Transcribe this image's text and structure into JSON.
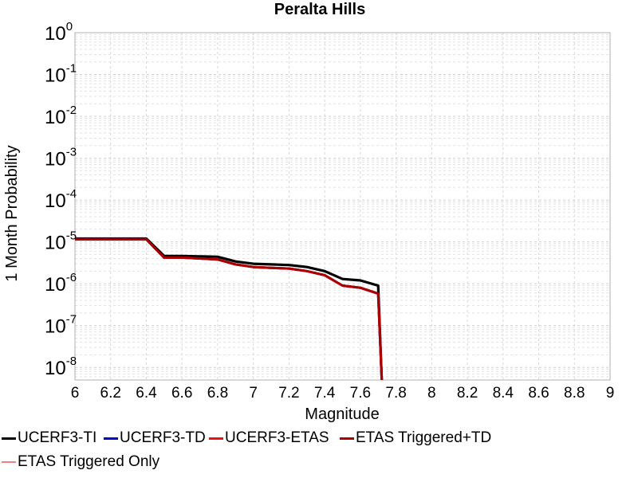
{
  "chart_data": {
    "type": "line",
    "title": "Peralta Hills",
    "xlabel": "Magnitude",
    "ylabel": "1 Month Probability",
    "xlim": [
      6,
      9
    ],
    "ylim": [
      5e-09,
      1
    ],
    "yscale": "log",
    "x_ticks": [
      "6",
      "6.2",
      "6.4",
      "6.6",
      "6.8",
      "7",
      "7.2",
      "7.4",
      "7.6",
      "7.8",
      "8",
      "8.2",
      "8.4",
      "8.6",
      "8.8",
      "9"
    ],
    "y_tick_base": "10",
    "y_ticks": [
      {
        "value": 1e-08,
        "exponent": "-8"
      },
      {
        "value": 1e-07,
        "exponent": "-7"
      },
      {
        "value": 1e-06,
        "exponent": "-6"
      },
      {
        "value": 1e-05,
        "exponent": "-5"
      },
      {
        "value": 0.0001,
        "exponent": "-4"
      },
      {
        "value": 0.001,
        "exponent": "-3"
      },
      {
        "value": 0.01,
        "exponent": "-2"
      },
      {
        "value": 0.1,
        "exponent": "-1"
      },
      {
        "value": 1,
        "exponent": "0"
      }
    ],
    "grid": true,
    "legend_position": "bottom",
    "series": [
      {
        "name": "UCERF3-TI",
        "color": "#000000",
        "x": [
          6.0,
          6.1,
          6.2,
          6.3,
          6.4,
          6.5,
          6.6,
          6.7,
          6.8,
          6.9,
          7.0,
          7.1,
          7.2,
          7.3,
          7.4,
          7.5,
          7.6,
          7.7,
          7.72
        ],
        "y": [
          1.2e-05,
          1.2e-05,
          1.2e-05,
          1.2e-05,
          1.2e-05,
          4.6e-06,
          4.6e-06,
          4.5e-06,
          4.4e-06,
          3.4e-06,
          3e-06,
          2.9e-06,
          2.8e-06,
          2.5e-06,
          2e-06,
          1.3e-06,
          1.2e-06,
          9e-07,
          5e-09
        ]
      },
      {
        "name": "UCERF3-TD",
        "color": "#0000cc",
        "x": [
          6.0,
          6.1,
          6.2,
          6.3,
          6.4,
          6.5,
          6.6,
          6.7,
          6.8,
          6.9,
          7.0,
          7.1,
          7.2,
          7.3,
          7.4,
          7.5,
          7.6,
          7.7,
          7.72
        ],
        "y": [
          1.15e-05,
          1.15e-05,
          1.15e-05,
          1.15e-05,
          1.15e-05,
          4.2e-06,
          4.2e-06,
          4e-06,
          3.8e-06,
          2.9e-06,
          2.5e-06,
          2.4e-06,
          2.3e-06,
          2e-06,
          1.6e-06,
          9e-07,
          8e-07,
          5.8e-07,
          5e-09
        ]
      },
      {
        "name": "UCERF3-ETAS",
        "color": "#ee1111",
        "x": [
          6.0,
          6.1,
          6.2,
          6.3,
          6.4,
          6.5,
          6.6,
          6.7,
          6.8,
          6.9,
          7.0,
          7.1,
          7.2,
          7.3,
          7.4,
          7.5,
          7.6,
          7.7,
          7.72
        ],
        "y": [
          1.15e-05,
          1.15e-05,
          1.15e-05,
          1.15e-05,
          1.15e-05,
          4.2e-06,
          4.2e-06,
          4e-06,
          3.8e-06,
          2.9e-06,
          2.5e-06,
          2.4e-06,
          2.3e-06,
          2e-06,
          1.6e-06,
          9e-07,
          8e-07,
          5.8e-07,
          5e-09
        ]
      },
      {
        "name": "ETAS Triggered+TD",
        "color": "#aa0000",
        "x": [
          6.0,
          6.1,
          6.2,
          6.3,
          6.4,
          6.5,
          6.6,
          6.7,
          6.8,
          6.9,
          7.0,
          7.1,
          7.2,
          7.3,
          7.4,
          7.5,
          7.6,
          7.7,
          7.72
        ],
        "y": [
          1.15e-05,
          1.15e-05,
          1.15e-05,
          1.15e-05,
          1.15e-05,
          4.2e-06,
          4.2e-06,
          4e-06,
          3.8e-06,
          2.9e-06,
          2.5e-06,
          2.4e-06,
          2.3e-06,
          2e-06,
          1.6e-06,
          9e-07,
          8e-07,
          5.8e-07,
          5e-09
        ]
      },
      {
        "name": "ETAS Triggered Only",
        "color": "#f08080",
        "x": [],
        "y": []
      }
    ]
  }
}
